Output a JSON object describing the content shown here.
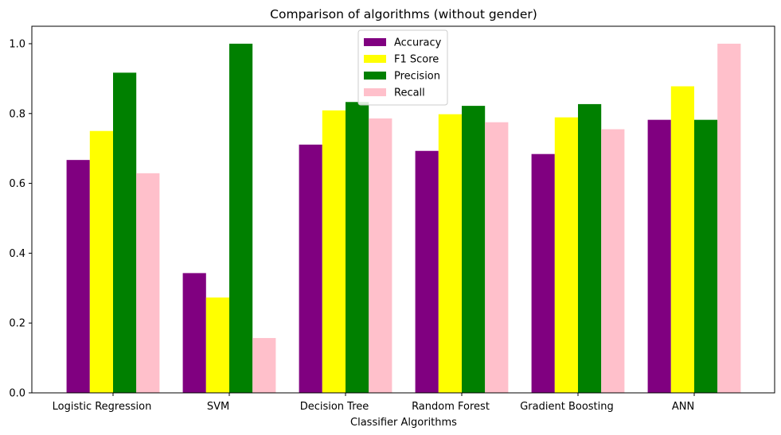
{
  "chart_data": {
    "type": "bar",
    "title": "Comparison of algorithms (without gender)",
    "xlabel": "Classifier Algorithms",
    "ylabel": "",
    "ylim": [
      0,
      1.05
    ],
    "yticks": [
      0.0,
      0.2,
      0.4,
      0.6,
      0.8,
      1.0
    ],
    "ytick_labels": [
      "0.0",
      "0.2",
      "0.4",
      "0.6",
      "0.8",
      "1.0"
    ],
    "categories": [
      "Logistic Regression",
      "SVM",
      "Decision Tree",
      "Random Forest",
      "Gradient Boosting",
      "ANN"
    ],
    "series": [
      {
        "name": "Accuracy",
        "color": "#800080",
        "values": [
          0.667,
          0.343,
          0.711,
          0.693,
          0.684,
          0.782
        ]
      },
      {
        "name": "F1 Score",
        "color": "#ffff00",
        "values": [
          0.75,
          0.273,
          0.809,
          0.798,
          0.789,
          0.878
        ]
      },
      {
        "name": "Precision",
        "color": "#008000",
        "values": [
          0.917,
          1.0,
          0.833,
          0.822,
          0.827,
          0.782
        ]
      },
      {
        "name": "Recall",
        "color": "#ffc0cb",
        "values": [
          0.629,
          0.157,
          0.786,
          0.775,
          0.755,
          1.0
        ]
      }
    ],
    "grid": false,
    "legend_position": "top-center"
  }
}
